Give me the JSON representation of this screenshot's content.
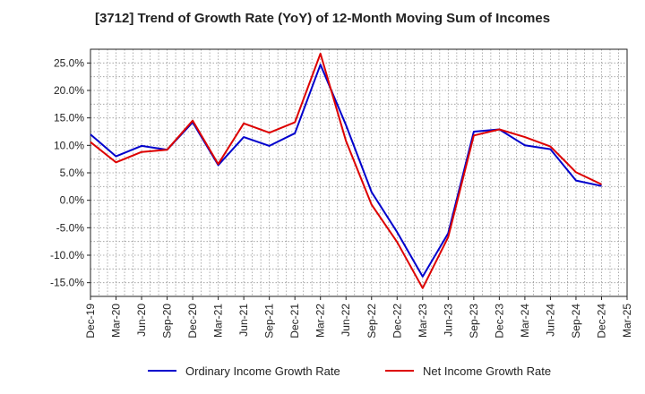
{
  "chart_data": {
    "type": "line",
    "title": "[3712]  Trend of Growth Rate (YoY) of 12-Month Moving Sum of Incomes",
    "xlabel": "",
    "ylabel": "",
    "categories": [
      "Dec-19",
      "Mar-20",
      "Jun-20",
      "Sep-20",
      "Dec-20",
      "Mar-21",
      "Jun-21",
      "Sep-21",
      "Dec-21",
      "Mar-22",
      "Jun-22",
      "Sep-22",
      "Dec-22",
      "Mar-23",
      "Jun-23",
      "Sep-23",
      "Dec-23",
      "Mar-24",
      "Jun-24",
      "Sep-24",
      "Dec-24",
      "Mar-25"
    ],
    "ylim": [
      -17.5,
      27.5
    ],
    "yticks": [
      -15,
      -10,
      -5,
      0,
      5,
      10,
      15,
      20,
      25
    ],
    "ytick_labels": [
      "-15.0%",
      "-10.0%",
      "-5.0%",
      "0.0%",
      "5.0%",
      "10.0%",
      "15.0%",
      "20.0%",
      "25.0%"
    ],
    "grid": true,
    "legend_position": "bottom",
    "series": [
      {
        "name": "Ordinary Income Growth Rate",
        "color": "#0000cc",
        "values": [
          12.0,
          8.0,
          9.9,
          9.2,
          14.2,
          6.4,
          11.5,
          9.9,
          12.2,
          24.7,
          13.7,
          1.5,
          -5.8,
          -13.9,
          -6.0,
          12.5,
          12.9,
          10.0,
          9.3,
          3.6,
          2.6,
          null
        ]
      },
      {
        "name": "Net Income Growth Rate",
        "color": "#dd0000",
        "values": [
          10.6,
          6.9,
          8.8,
          9.2,
          14.5,
          6.6,
          14.0,
          12.3,
          14.2,
          26.7,
          10.8,
          -0.8,
          -7.6,
          -16.0,
          -6.7,
          11.8,
          12.9,
          11.5,
          9.8,
          5.1,
          2.9,
          null
        ]
      }
    ]
  }
}
